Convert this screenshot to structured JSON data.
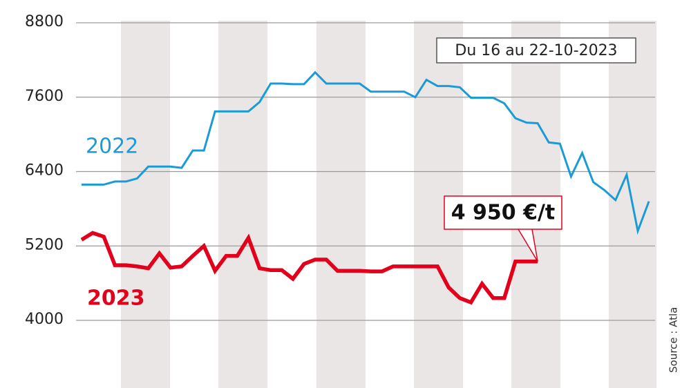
{
  "chart_data": {
    "type": "line",
    "subtitle": "Du 16 au 22-10-2023",
    "source": "Source : Atla",
    "annotation": "4 950 €/t",
    "ylim": [
      2900,
      8800
    ],
    "yticks": [
      4000,
      5200,
      6400,
      7600,
      8800
    ],
    "grid": true,
    "series": [
      {
        "name": "2022",
        "color": "#1a9bd7",
        "values": [
          6190,
          6190,
          6190,
          6240,
          6240,
          6290,
          6480,
          6480,
          6480,
          6460,
          6740,
          6740,
          7370,
          7370,
          7370,
          7370,
          7520,
          7820,
          7820,
          7810,
          7810,
          8000,
          7820,
          7820,
          7820,
          7820,
          7690,
          7690,
          7690,
          7690,
          7600,
          7880,
          7780,
          7780,
          7760,
          7590,
          7590,
          7590,
          7500,
          7260,
          7190,
          7180,
          6870,
          6850,
          6320,
          6700,
          6230,
          6100,
          5940,
          6350,
          5440,
          5920
        ]
      },
      {
        "name": "2023",
        "color": "#e3001b",
        "values": [
          5300,
          5410,
          5350,
          4890,
          4890,
          4870,
          4840,
          5080,
          4850,
          4870,
          5040,
          5200,
          4800,
          5040,
          5040,
          5330,
          4840,
          4810,
          4810,
          4670,
          4910,
          4980,
          4980,
          4800,
          4800,
          4800,
          4790,
          4790,
          4870,
          4870,
          4870,
          4870,
          4870,
          4530,
          4360,
          4290,
          4590,
          4360,
          4360,
          4950,
          4950,
          4950,
          null,
          null,
          null,
          null,
          null,
          null,
          null,
          null,
          null,
          null
        ]
      }
    ]
  }
}
